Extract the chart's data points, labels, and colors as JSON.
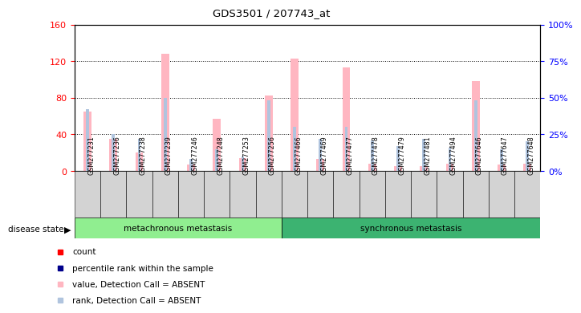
{
  "title": "GDS3501 / 207743_at",
  "samples": [
    "GSM277231",
    "GSM277236",
    "GSM277238",
    "GSM277239",
    "GSM277246",
    "GSM277248",
    "GSM277253",
    "GSM277256",
    "GSM277466",
    "GSM277469",
    "GSM277477",
    "GSM277478",
    "GSM277479",
    "GSM277481",
    "GSM277494",
    "GSM277646",
    "GSM277647",
    "GSM277648"
  ],
  "n_group1": 8,
  "n_group2": 10,
  "value_absent": [
    65,
    35,
    20,
    128,
    7,
    57,
    14,
    82,
    123,
    13,
    113,
    8,
    5,
    5,
    8,
    98,
    7,
    8
  ],
  "rank_absent": [
    42,
    25,
    22,
    50,
    8,
    15,
    10,
    48,
    30,
    22,
    30,
    21,
    17,
    22,
    16,
    48,
    15,
    20
  ],
  "ylim_left": [
    0,
    160
  ],
  "ylim_right": [
    0,
    100
  ],
  "yticks_left": [
    0,
    40,
    80,
    120,
    160
  ],
  "yticks_right": [
    0,
    25,
    50,
    75,
    100
  ],
  "bar_color_absent": "#FFB6C1",
  "rank_color_absent": "#B0C4DE",
  "count_color": "#FF0000",
  "rank_color": "#00008B",
  "axis_left_color": "#FF0000",
  "axis_right_color": "#0000FF",
  "grid_color": "#000000",
  "xticklabel_bg": "#D3D3D3",
  "group_color_1": "#90EE90",
  "group_color_2": "#3CB371",
  "disease_state_label": "disease state",
  "group1_label": "metachronous metastasis",
  "group2_label": "synchronous metastasis",
  "legend_items": [
    {
      "color": "#FF0000",
      "label": "count",
      "marker": "s"
    },
    {
      "color": "#00008B",
      "label": "percentile rank within the sample",
      "marker": "s"
    },
    {
      "color": "#FFB6C1",
      "label": "value, Detection Call = ABSENT",
      "marker": "s"
    },
    {
      "color": "#B0C4DE",
      "label": "rank, Detection Call = ABSENT",
      "marker": "s"
    }
  ]
}
